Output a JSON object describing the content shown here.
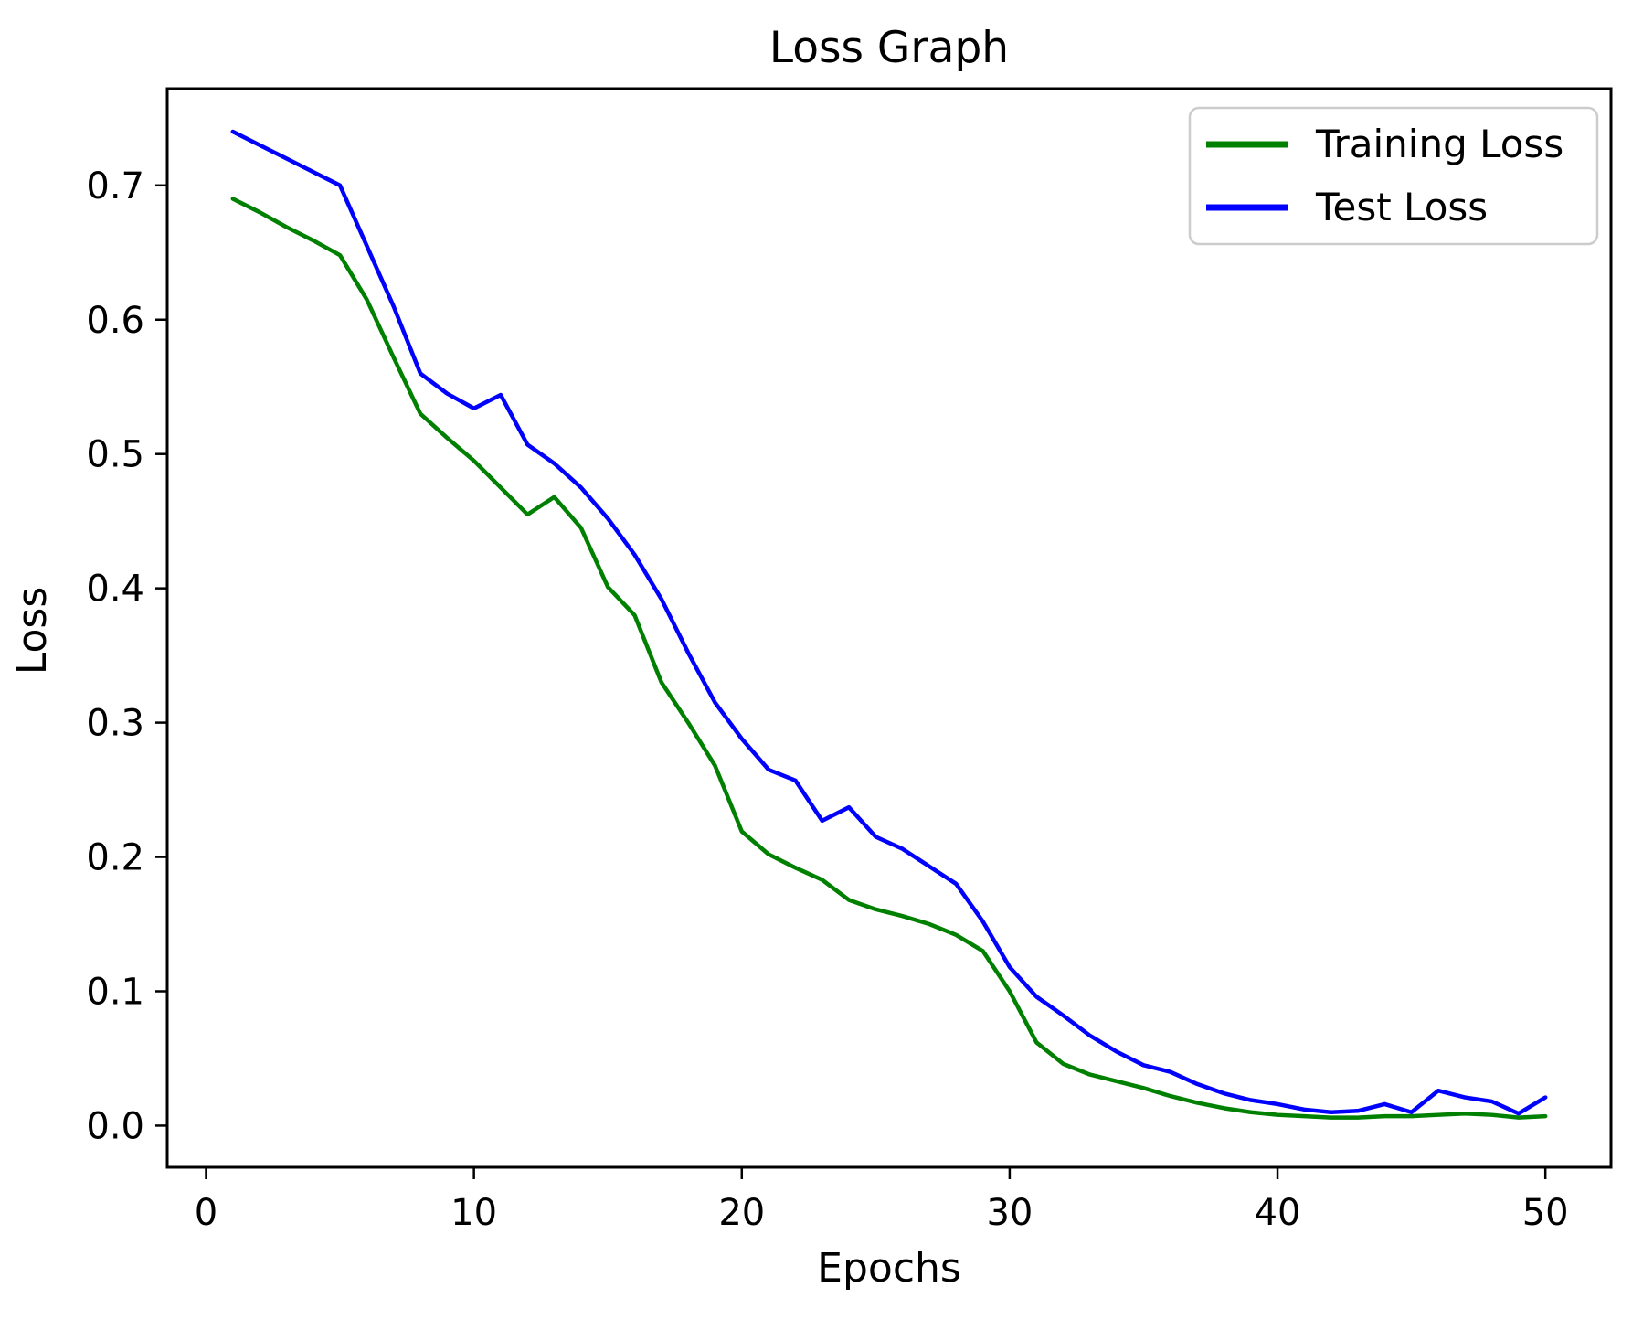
{
  "chart_data": {
    "type": "line",
    "title": "Loss Graph",
    "xlabel": "Epochs",
    "ylabel": "Loss",
    "grid": false,
    "legend_position": "upper right",
    "line_width": 4.5,
    "xlim": [
      -1.45,
      52.45
    ],
    "ylim": [
      -0.031,
      0.772
    ],
    "xticks": {
      "values": [
        0,
        10,
        20,
        30,
        40,
        50
      ],
      "labels": [
        "0",
        "10",
        "20",
        "30",
        "40",
        "50"
      ]
    },
    "yticks": {
      "values": [
        0.0,
        0.1,
        0.2,
        0.3,
        0.4,
        0.5,
        0.6,
        0.7
      ],
      "labels": [
        "0.0",
        "0.1",
        "0.2",
        "0.3",
        "0.4",
        "0.5",
        "0.6",
        "0.7"
      ]
    },
    "x": [
      1,
      2,
      3,
      4,
      5,
      6,
      7,
      8,
      9,
      10,
      11,
      12,
      13,
      14,
      15,
      16,
      17,
      18,
      19,
      20,
      21,
      22,
      23,
      24,
      25,
      26,
      27,
      28,
      29,
      30,
      31,
      32,
      33,
      34,
      35,
      36,
      37,
      38,
      39,
      40,
      41,
      42,
      43,
      44,
      45,
      46,
      47,
      48,
      49,
      50
    ],
    "series": [
      {
        "name": "Training Loss",
        "color": "#008000",
        "values": [
          0.69,
          0.68,
          0.669,
          0.659,
          0.648,
          0.615,
          0.572,
          0.53,
          0.512,
          0.495,
          0.475,
          0.455,
          0.468,
          0.445,
          0.401,
          0.38,
          0.33,
          0.3,
          0.268,
          0.219,
          0.202,
          0.192,
          0.183,
          0.168,
          0.161,
          0.156,
          0.15,
          0.142,
          0.13,
          0.1,
          0.062,
          0.046,
          0.038,
          0.033,
          0.028,
          0.022,
          0.017,
          0.013,
          0.01,
          0.008,
          0.007,
          0.006,
          0.006,
          0.007,
          0.007,
          0.008,
          0.009,
          0.008,
          0.006,
          0.007
        ]
      },
      {
        "name": "Test Loss",
        "color": "#0000ff",
        "values": [
          0.74,
          0.73,
          0.72,
          0.71,
          0.7,
          0.655,
          0.61,
          0.56,
          0.545,
          0.534,
          0.544,
          0.507,
          0.493,
          0.475,
          0.452,
          0.425,
          0.392,
          0.352,
          0.315,
          0.288,
          0.265,
          0.257,
          0.227,
          0.237,
          0.215,
          0.206,
          0.193,
          0.18,
          0.152,
          0.118,
          0.096,
          0.082,
          0.067,
          0.055,
          0.045,
          0.04,
          0.031,
          0.024,
          0.019,
          0.016,
          0.012,
          0.01,
          0.011,
          0.016,
          0.01,
          0.026,
          0.021,
          0.018,
          0.009,
          0.021
        ]
      }
    ]
  },
  "legend": {
    "items": [
      {
        "label": "Training Loss",
        "color": "#008000"
      },
      {
        "label": "Test Loss",
        "color": "#0000ff"
      }
    ]
  }
}
